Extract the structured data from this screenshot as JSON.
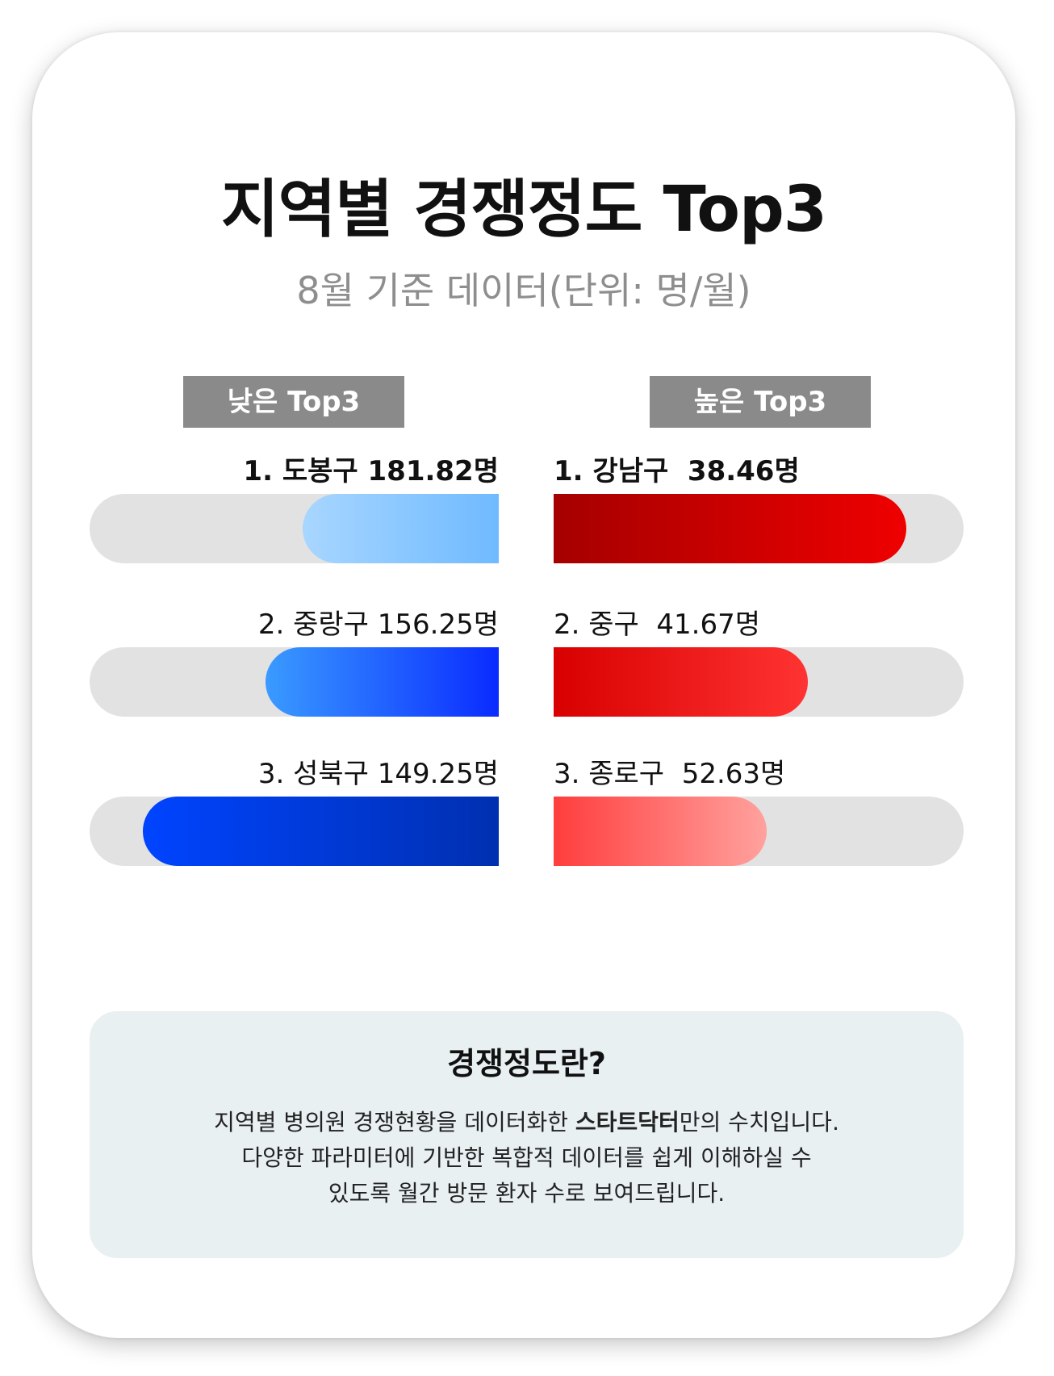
{
  "title": "지역별 경쟁정도 Top3",
  "subtitle": "8월 기준 데이터(단위: 명/월)",
  "tags": {
    "low": "낮은 Top3",
    "high": "높은 Top3"
  },
  "chart_data": [
    {
      "type": "bar",
      "orientation": "horizontal",
      "group": "낮은 Top3",
      "categories": [
        "1. 도봉구",
        "2. 중랑구",
        "3. 성북구"
      ],
      "values": [
        181.82,
        156.25,
        149.25
      ],
      "labels": [
        "1. 도봉구 181.82명",
        "2. 중랑구 156.25명",
        "3. 성북구 149.25명"
      ],
      "fill_fraction": [
        0.48,
        0.57,
        0.87
      ],
      "colors": [
        [
          "#a8d6ff",
          "#6fbaff"
        ],
        [
          "#3a9bff",
          "#0a2bff"
        ],
        [
          "#0044ff",
          "#002fb0"
        ]
      ]
    },
    {
      "type": "bar",
      "orientation": "horizontal",
      "group": "높은 Top3",
      "categories": [
        "1. 강남구",
        "2. 중구",
        "3. 종로구"
      ],
      "values": [
        38.46,
        41.67,
        52.63
      ],
      "labels": [
        "1. 강남구  38.46명",
        "2. 중구  41.67명",
        "3. 종로구  52.63명"
      ],
      "fill_fraction": [
        0.86,
        0.62,
        0.52
      ],
      "colors": [
        [
          "#a50000",
          "#ef0000"
        ],
        [
          "#d80000",
          "#ff3333"
        ],
        [
          "#ff3d3d",
          "#ffa29e"
        ]
      ]
    }
  ],
  "info": {
    "title": "경쟁정도란?",
    "line1_pre": "지역별 병의원 경쟁현황을 데이터화한 ",
    "line1_bold": "스타트닥터",
    "line1_post": "만의 수치입니다.",
    "line2": "다양한 파라미터에 기반한 복합적 데이터를 쉽게 이해하실 수",
    "line3": "있도록 월간 방문 환자 수로 보여드립니다."
  }
}
